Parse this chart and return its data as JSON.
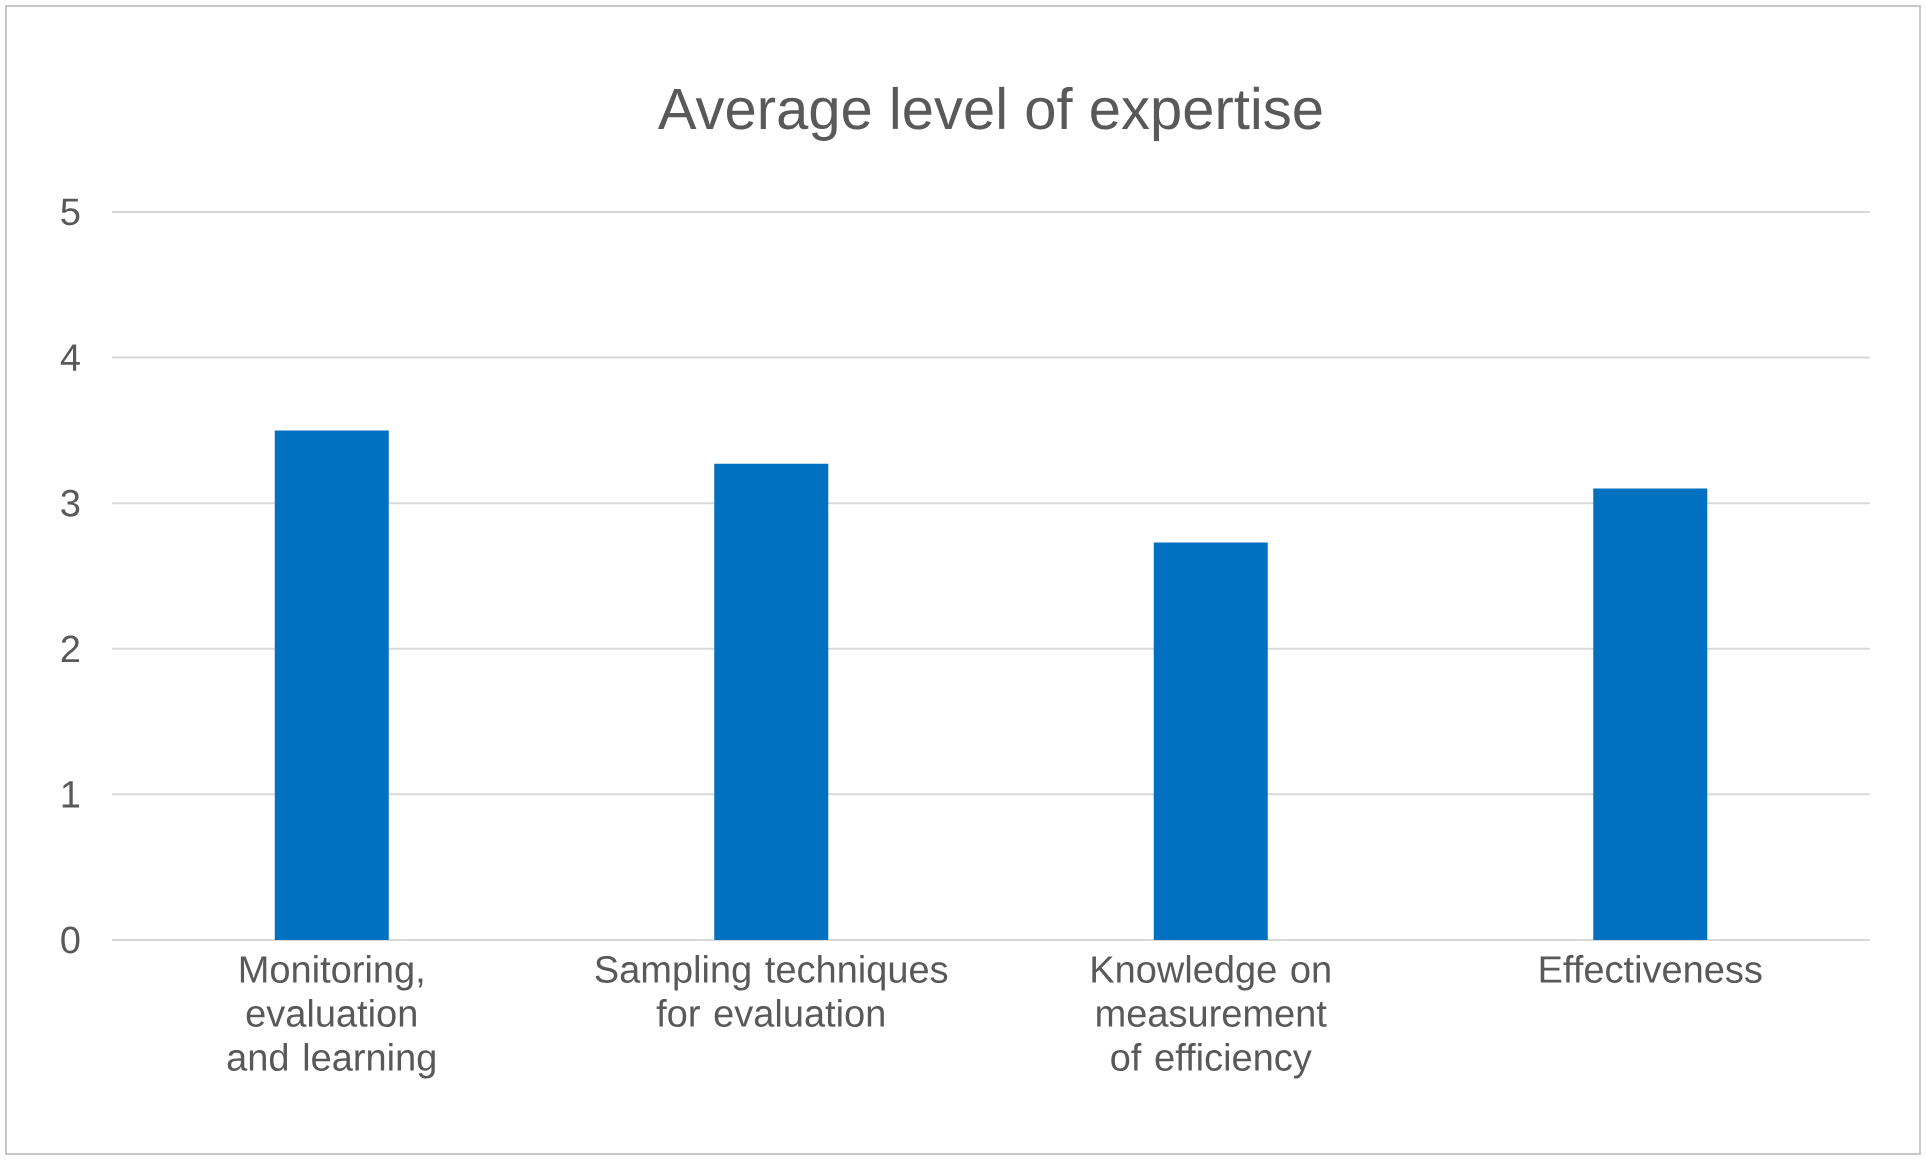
{
  "chart_data": {
    "type": "bar",
    "title": "Average level of expertise",
    "categories": [
      "Monitoring, evaluation and learning",
      "Sampling techniques for evaluation",
      "Knowledge on measurement of efficiency",
      "Effectiveness"
    ],
    "values": [
      3.5,
      3.27,
      2.73,
      3.1
    ],
    "color": "#0070c0",
    "ylim": [
      0,
      5
    ],
    "yticks": [
      0,
      1,
      2,
      3,
      4,
      5
    ],
    "grid": "y"
  }
}
